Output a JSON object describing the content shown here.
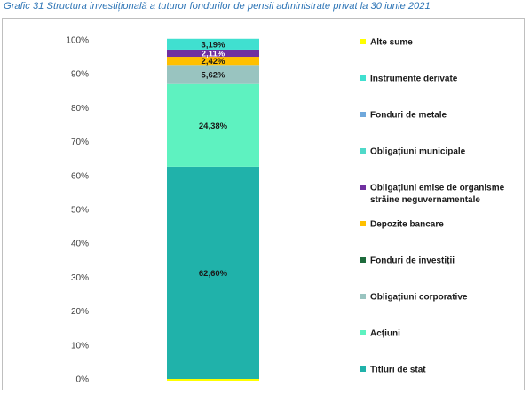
{
  "caption": "Grafic 31 Structura investițională a tuturor fondurilor de pensii administrate privat la 30 iunie 2021",
  "chart_data": {
    "type": "bar",
    "stacked": true,
    "title": "Grafic 31 Structura investițională a tuturor fondurilor de pensii administrate privat la 30 iunie 2021",
    "categories": [
      ""
    ],
    "ylim": [
      0,
      100
    ],
    "yticks": [
      "0%",
      "10%",
      "20%",
      "30%",
      "40%",
      "50%",
      "60%",
      "70%",
      "80%",
      "90%",
      "100%"
    ],
    "grid": false,
    "legend_position": "right",
    "series": [
      {
        "name": "Titluri de stat",
        "values": [
          62.6
        ],
        "label": "62,60%",
        "color": "#20b2aa"
      },
      {
        "name": "Acțiuni",
        "values": [
          24.38
        ],
        "label": "24,38%",
        "color": "#5ef2c0"
      },
      {
        "name": "Obligațiuni corporative",
        "values": [
          5.62
        ],
        "label": "5,62%",
        "color": "#99c4c0"
      },
      {
        "name": "Fonduri de investiții",
        "values": [
          0.0
        ],
        "label": "",
        "color": "#1e6b3c"
      },
      {
        "name": "Depozite bancare",
        "values": [
          2.42
        ],
        "label": "2,42%",
        "color": "#ffc000"
      },
      {
        "name": "Obligațiuni emise de organisme străine neguvernamentale",
        "values": [
          2.11
        ],
        "label": "2,11%",
        "color": "#7030a0"
      },
      {
        "name": "Obligațiuni municipale",
        "values": [
          0.0
        ],
        "label": "",
        "color": "#4fd9c9"
      },
      {
        "name": "Fonduri de metale",
        "values": [
          0.0
        ],
        "label": "",
        "color": "#6fa8dc"
      },
      {
        "name": "Instrumente derivate",
        "values": [
          3.19
        ],
        "label": "3,19%",
        "color": "#40e0d0"
      },
      {
        "name": "Alte sume",
        "values": [
          0.0
        ],
        "label": "",
        "color": "#ffff00"
      }
    ],
    "legend_order": [
      "Alte sume",
      "Instrumente derivate",
      "Fonduri de metale",
      "Obligațiuni municipale",
      "Obligațiuni emise de organisme străine neguvernamentale",
      "Depozite bancare",
      "Fonduri de investiții",
      "Obligațiuni corporative",
      "Acțiuni",
      "Titluri de stat"
    ]
  }
}
